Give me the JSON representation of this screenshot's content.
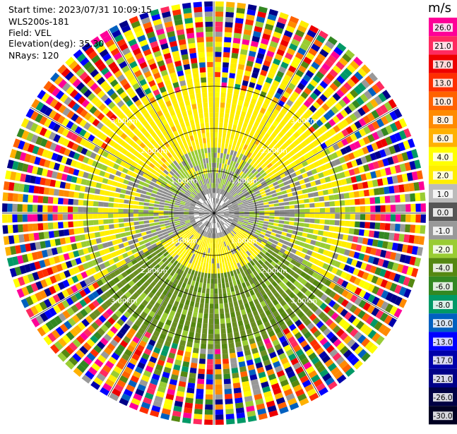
{
  "header": {
    "start_time": "Start time: 2023/07/31 10:09:15",
    "site": "WLS200s-181",
    "field": "Field: VEL",
    "elevation": "Elevation(deg): 35.30",
    "nrays": "NRays: 120"
  },
  "colorbar": {
    "unit": "m/s",
    "ticks": [
      "26.0",
      "21.0",
      "17.0",
      "13.0",
      "10.0",
      "8.0",
      "6.0",
      "4.0",
      "2.0",
      "1.0",
      "0.0",
      "-1.0",
      "-2.0",
      "-4.0",
      "-6.0",
      "-8.0",
      "-10.0",
      "-13.0",
      "-17.0",
      "-21.0",
      "-26.0",
      "-30.0"
    ],
    "colors": [
      "#fe0098",
      "#ff2a60",
      "#ee0000",
      "#fe2e00",
      "#ff6200",
      "#ff8a00",
      "#ffb100",
      "#ffff00",
      "#ffee00",
      "#bbbbbb",
      "#555555",
      "#999999",
      "#99cc33",
      "#558811",
      "#338822",
      "#009966",
      "#0060c0",
      "#0000ff",
      "#0000aa",
      "#000088",
      "#000044",
      "#000022"
    ]
  },
  "chart_data": {
    "type": "heatmap",
    "title": "",
    "field": "VEL",
    "units": "m/s",
    "nrays": 120,
    "elevation_deg": 35.3,
    "range_rings_km": [
      1.0,
      2.0,
      3.0
    ],
    "ring_labels": [
      "1.00km",
      "2.00km",
      "3.00km"
    ],
    "max_range_km": 5.0,
    "pattern": {
      "inner_core_km": 0.6,
      "near_field": "mostly grey (0 to -1 m/s) near center",
      "north_band": "yellow (2 to 4 m/s) arc between 1.0 and 2.5 km in northern sector",
      "south_band": "yellow (2 to 4 m/s) lobe south of center within 1.5 km",
      "south_outer": "olive/green (-2 to -4 m/s) between 1.5 and 3.2 km in southern sector",
      "far_field": "noise beyond ~3.5 km (random colors)"
    }
  }
}
